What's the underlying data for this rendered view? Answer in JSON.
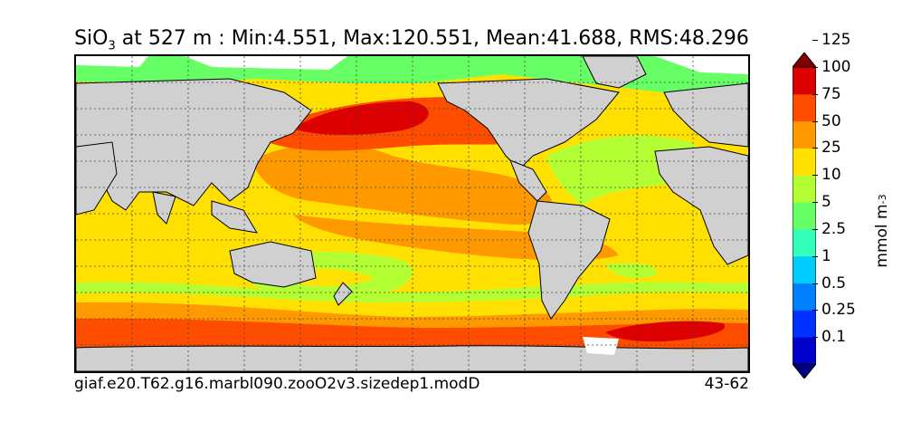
{
  "title": {
    "species": "SiO",
    "subscript": "3",
    "rest": " at 527 m : Min:4.551, Max:120.551, Mean:41.688, RMS:48.296"
  },
  "footer": {
    "case": "giaf.e20.T62.g16.marbl090.zooO2v3.sizedep1.modD",
    "years": "43-62"
  },
  "colorbar": {
    "unit_main": "mmol m",
    "unit_sup": "-3",
    "levels": [
      "0.1",
      "0.25",
      "0.5",
      "1",
      "2.5",
      "5",
      "10",
      "25",
      "50",
      "75",
      "100",
      "125"
    ],
    "colors": [
      "#000080",
      "#0000cd",
      "#0030ff",
      "#0080ff",
      "#00ccff",
      "#33ffbb",
      "#66ff66",
      "#b3ff33",
      "#ffe000",
      "#ff9900",
      "#ff4d00",
      "#dd0000",
      "#800000"
    ]
  },
  "map": {
    "land_color": "#d0d0d0",
    "grid": "dotted",
    "colors": {
      "c5": "#66ff66",
      "c10": "#b3ff33",
      "c25": "#ffe000",
      "c50": "#ff9900",
      "c75": "#ff4d00",
      "c100": "#dd0000",
      "c125": "#800000"
    }
  }
}
